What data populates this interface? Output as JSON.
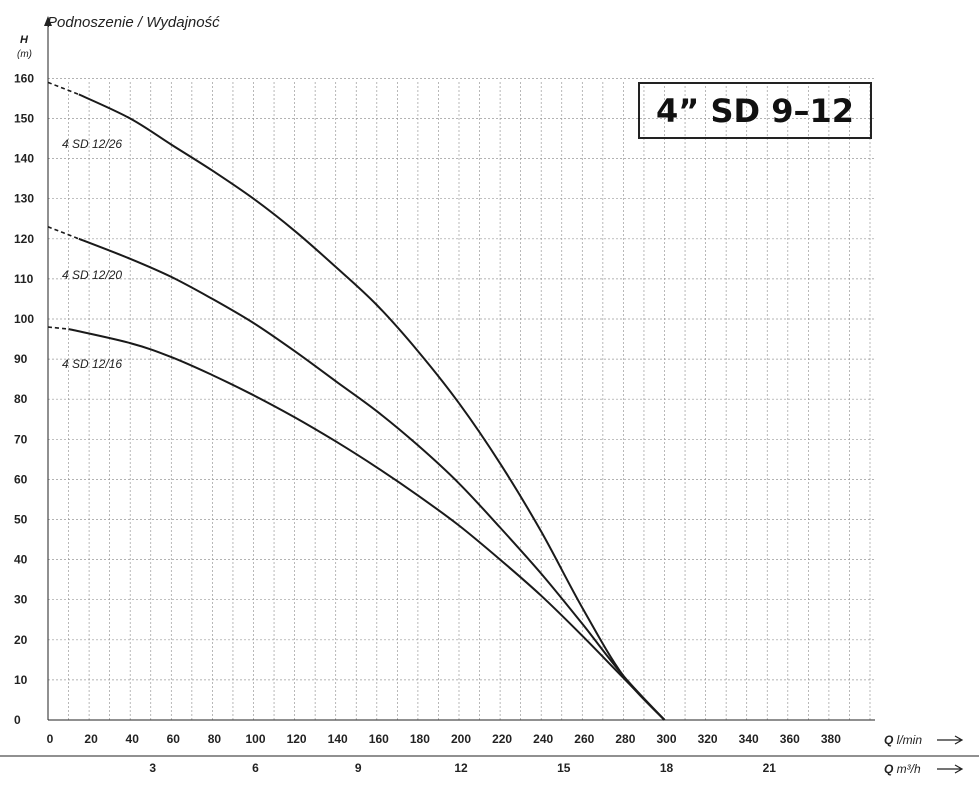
{
  "header": {
    "title": "Podnoszenie / Wydajność",
    "ylabel": "H",
    "yunit": "(m)"
  },
  "model_label": "4” SD 9–12",
  "chart_data": {
    "type": "line",
    "title": "Podnoszenie / Wydajność",
    "ylabel": "H (m)",
    "ylim": [
      0,
      160
    ],
    "y_ticks": [
      0,
      10,
      20,
      30,
      40,
      50,
      60,
      70,
      80,
      90,
      100,
      110,
      120,
      130,
      140,
      150,
      160
    ],
    "xlim": [
      0,
      400
    ],
    "x_ticks": [
      0,
      20,
      40,
      60,
      80,
      100,
      120,
      140,
      160,
      180,
      200,
      220,
      240,
      260,
      280,
      300,
      320,
      340,
      360,
      380
    ],
    "xlabel": "Q l/min",
    "x2_ticks": [
      3,
      6,
      9,
      12,
      15,
      18,
      21
    ],
    "x2label": "Q m³/h",
    "grid": true,
    "series": [
      {
        "name": "4 SD 12/26",
        "dashed_until": 15,
        "points": [
          [
            0,
            159
          ],
          [
            15,
            156
          ],
          [
            40,
            150
          ],
          [
            60,
            143.5
          ],
          [
            80,
            137
          ],
          [
            100,
            130
          ],
          [
            120,
            122
          ],
          [
            140,
            113
          ],
          [
            160,
            103.5
          ],
          [
            180,
            92
          ],
          [
            200,
            79
          ],
          [
            220,
            64
          ],
          [
            240,
            47
          ],
          [
            260,
            28
          ],
          [
            280,
            11
          ],
          [
            300,
            0
          ]
        ]
      },
      {
        "name": "4 SD 12/20",
        "dashed_until": 15,
        "points": [
          [
            0,
            123
          ],
          [
            15,
            120
          ],
          [
            40,
            115
          ],
          [
            60,
            110.5
          ],
          [
            80,
            105
          ],
          [
            100,
            99
          ],
          [
            120,
            92
          ],
          [
            140,
            84.5
          ],
          [
            160,
            77
          ],
          [
            180,
            68.5
          ],
          [
            200,
            59
          ],
          [
            220,
            48
          ],
          [
            240,
            36.5
          ],
          [
            260,
            24
          ],
          [
            280,
            11
          ],
          [
            300,
            0
          ]
        ]
      },
      {
        "name": "4 SD 12/16",
        "dashed_until": 10,
        "points": [
          [
            0,
            98
          ],
          [
            10,
            97.5
          ],
          [
            40,
            94
          ],
          [
            60,
            90.5
          ],
          [
            80,
            86
          ],
          [
            100,
            81
          ],
          [
            120,
            75.5
          ],
          [
            140,
            69.5
          ],
          [
            160,
            63
          ],
          [
            180,
            56
          ],
          [
            200,
            48.5
          ],
          [
            220,
            40
          ],
          [
            240,
            31
          ],
          [
            260,
            21
          ],
          [
            280,
            10.5
          ],
          [
            300,
            0
          ]
        ]
      }
    ]
  }
}
